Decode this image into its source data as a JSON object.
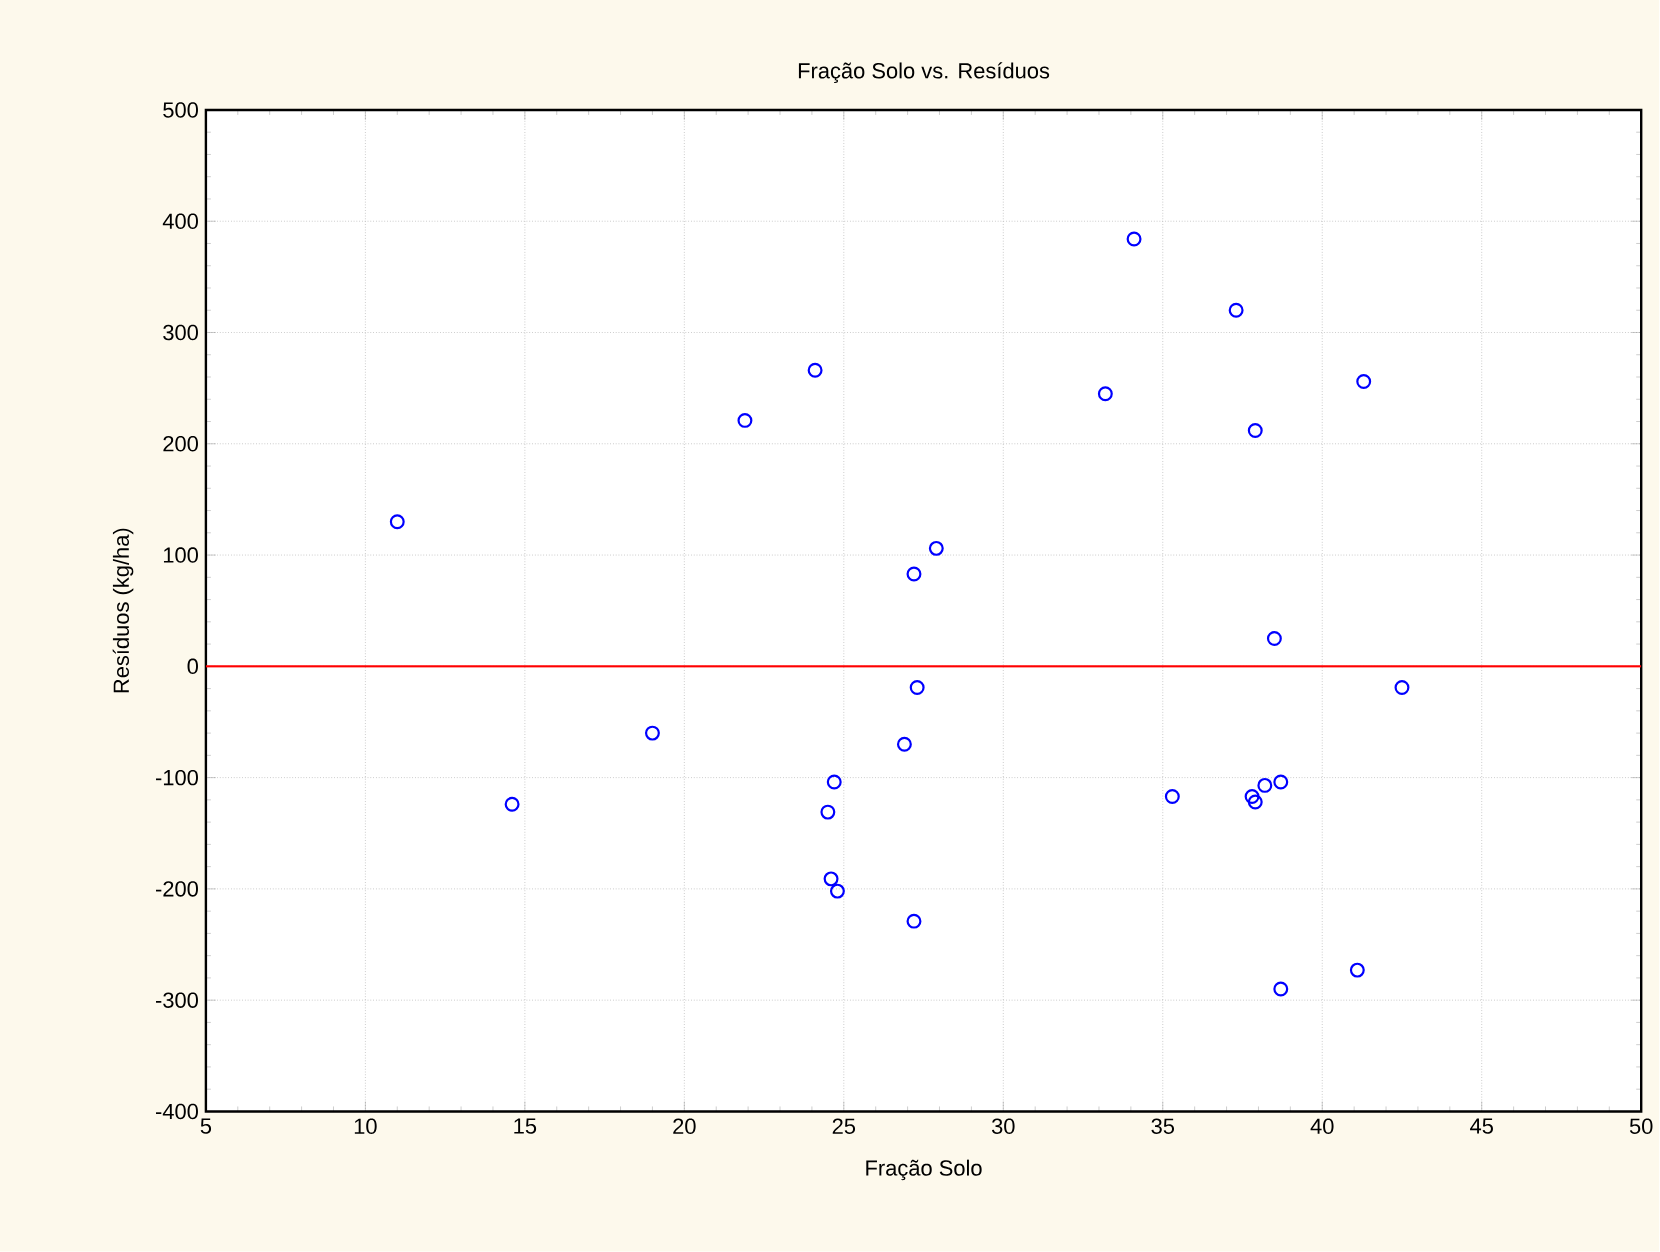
{
  "chart_data": {
    "type": "scatter",
    "title": "Fração Solo vs. Resíduos",
    "xlabel": "Fração Solo",
    "ylabel": "Resíduos (kg/ha)",
    "x": [
      11.0,
      21.9,
      24.1,
      34.1,
      37.3,
      33.2,
      41.3,
      37.9,
      27.9,
      27.2,
      38.5,
      19.0,
      14.6,
      24.7,
      24.5,
      24.6,
      24.8,
      27.3,
      42.5,
      26.9,
      27.2,
      35.3,
      37.8,
      37.9,
      38.2,
      38.7,
      41.1,
      38.7
    ],
    "values": [
      130,
      221,
      266,
      384,
      320,
      245,
      256,
      212,
      106,
      83,
      25,
      -60,
      -124,
      -104,
      -131,
      -191,
      -202,
      -19,
      -19,
      -70,
      -229,
      -117,
      -117,
      -122,
      -107,
      -104,
      -273,
      -290
    ],
    "color": "#0000ff",
    "marker": "circle",
    "xlim": [
      5,
      50
    ],
    "ylim": [
      -400,
      500
    ],
    "xticks": [
      5,
      10,
      15,
      20,
      25,
      30,
      35,
      40,
      45,
      50
    ],
    "yticks": [
      -400,
      -300,
      -200,
      -100,
      0,
      100,
      200,
      300,
      400,
      500
    ],
    "grid": true,
    "ref_lines": [
      {
        "axis": "y",
        "value": 0,
        "color": "#ff0000"
      }
    ]
  }
}
